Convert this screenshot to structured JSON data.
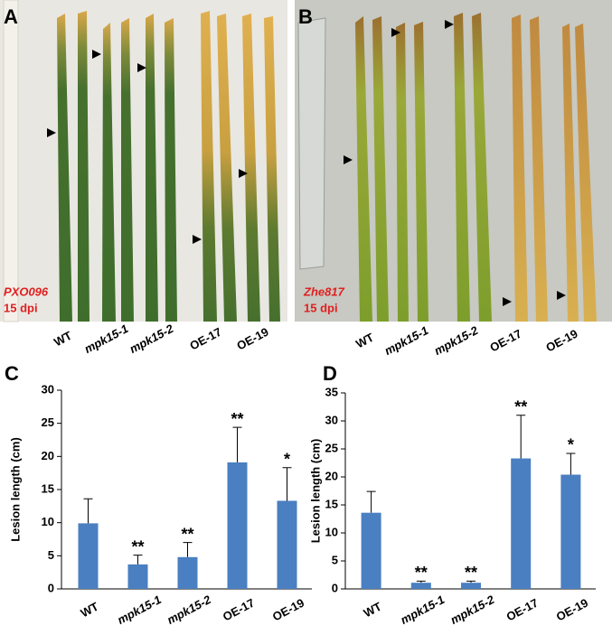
{
  "photos": [
    {
      "panel_label": "A",
      "strain": "PXO096",
      "time": "15 dpi",
      "labels": [
        "WT",
        "mpk15-1",
        "mpk15-2",
        "OE-17",
        "OE-19"
      ]
    },
    {
      "panel_label": "B",
      "strain": "Zhe817",
      "time": "15 dpi",
      "labels": [
        "WT",
        "mpk15-1",
        "mpk15-2",
        "OE-17",
        "OE-19"
      ]
    }
  ],
  "chart_data": [
    {
      "type": "bar",
      "panel_label": "C",
      "y_label": "Lesion length (cm)",
      "categories": [
        "WT",
        "mpk15-1",
        "mpk15-2",
        "OE-17",
        "OE-19"
      ],
      "values": [
        9.9,
        3.7,
        4.8,
        19.1,
        13.3
      ],
      "errors": [
        3.7,
        1.4,
        2.2,
        5.3,
        5.0
      ],
      "annotations": [
        null,
        "**",
        "**",
        "**",
        "*"
      ],
      "color": "#4a7fc1",
      "ylim": [
        0,
        30
      ],
      "yticks": [
        0,
        5,
        10,
        15,
        20,
        25,
        30
      ],
      "grid": false
    },
    {
      "type": "bar",
      "panel_label": "D",
      "y_label": "Lesion length (cm)",
      "categories": [
        "WT",
        "mpk15-1",
        "mpk15-2",
        "OE-17",
        "OE-19"
      ],
      "values": [
        13.6,
        1.1,
        1.1,
        23.3,
        20.4
      ],
      "errors": [
        3.8,
        0.3,
        0.3,
        7.7,
        3.8
      ],
      "annotations": [
        null,
        "**",
        "**",
        "**",
        "*"
      ],
      "color": "#4a7fc1",
      "ylim": [
        0,
        35
      ],
      "yticks": [
        0,
        5,
        10,
        15,
        20,
        25,
        30,
        35
      ],
      "grid": false
    }
  ]
}
